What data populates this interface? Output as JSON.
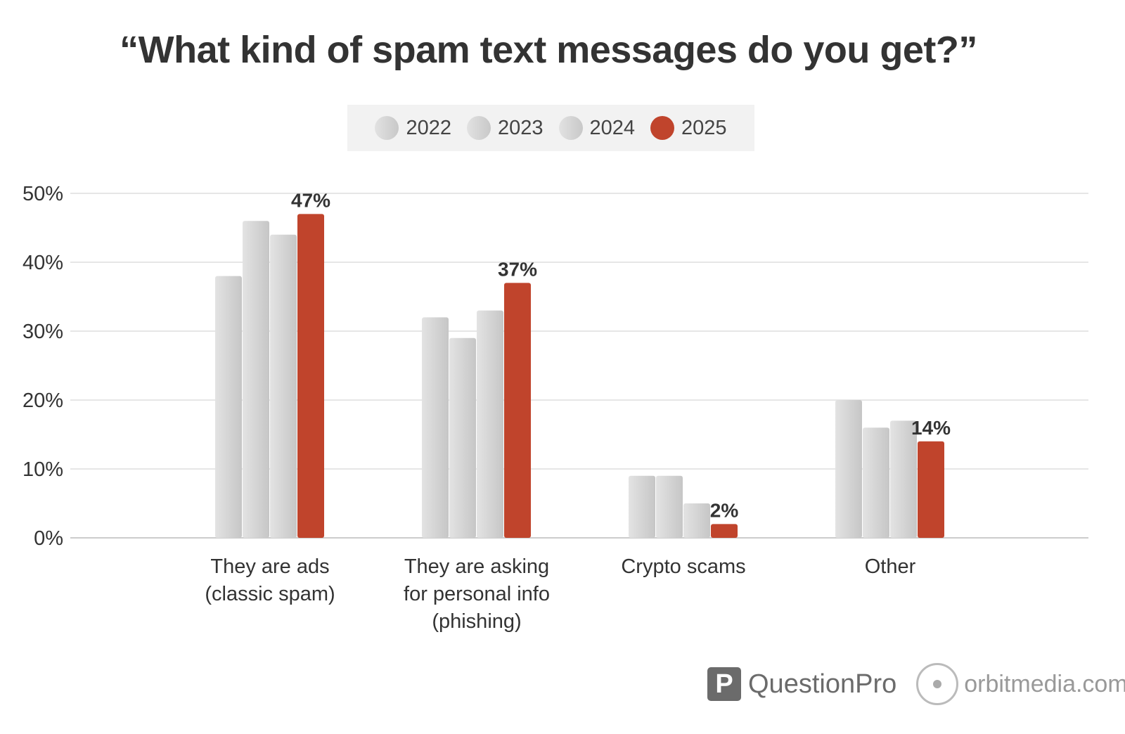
{
  "chart_data": {
    "type": "bar",
    "title": "“What kind of spam text messages do you get?”",
    "categories": [
      "They are ads\n(classic spam)",
      "They are asking\nfor personal info\n(phishing)",
      "Crypto scams",
      "Other"
    ],
    "series": [
      {
        "name": "2022",
        "color": "#d4d4d4",
        "values": [
          38,
          32,
          9,
          20
        ]
      },
      {
        "name": "2023",
        "color": "#d4d4d4",
        "values": [
          46,
          29,
          9,
          16
        ]
      },
      {
        "name": "2024",
        "color": "#d4d4d4",
        "values": [
          44,
          33,
          5,
          17
        ]
      },
      {
        "name": "2025",
        "color": "#c0442c",
        "values": [
          47,
          37,
          2,
          14
        ]
      }
    ],
    "data_labels": [
      "47%",
      "37%",
      "2%",
      "14%"
    ],
    "yticks": [
      "0%",
      "10%",
      "20%",
      "30%",
      "40%",
      "50%"
    ],
    "ylim": [
      0,
      50
    ],
    "grid": true,
    "legend_position": "top-center",
    "xlabel": "",
    "ylabel": ""
  },
  "branding": {
    "questionpro": "QuestionPro",
    "orbitmedia": "orbitmedia.com"
  }
}
